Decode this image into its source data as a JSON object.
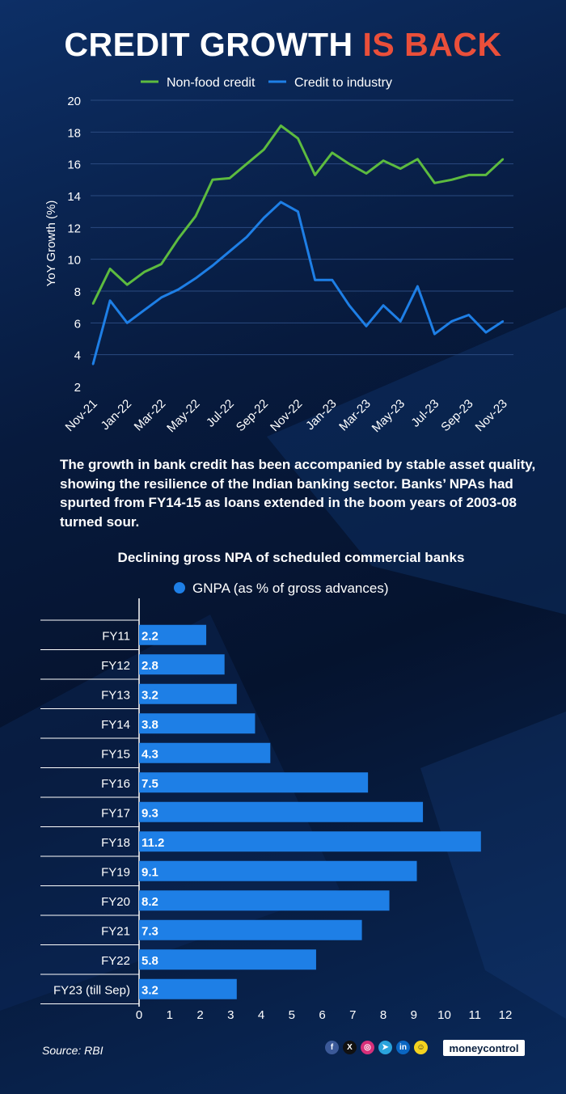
{
  "header": {
    "title_main": "CREDIT GROWTH ",
    "title_highlight": "IS BACK"
  },
  "colors": {
    "non_food": "#5dbb3f",
    "industry": "#1e7fe6",
    "bar": "#1e7fe6",
    "highlight": "#ea4f3a"
  },
  "chart_data": [
    {
      "type": "line",
      "ylabel": "YoY Growth (%)",
      "ylim": [
        2,
        20
      ],
      "yticks": [
        2,
        4,
        6,
        8,
        10,
        12,
        14,
        16,
        18,
        20
      ],
      "x": [
        "Nov-21",
        "Dec-21",
        "Jan-22",
        "Feb-22",
        "Mar-22",
        "Apr-22",
        "May-22",
        "Jun-22",
        "Jul-22",
        "Aug-22",
        "Sep-22",
        "Oct-22",
        "Nov-22",
        "Dec-22",
        "Jan-23",
        "Feb-23",
        "Mar-23",
        "Apr-23",
        "May-23",
        "Jun-23",
        "Jul-23",
        "Aug-23",
        "Sep-23",
        "Oct-23",
        "Nov-23"
      ],
      "xticklabels": [
        "Nov-21",
        "Jan-22",
        "Mar-22",
        "May-22",
        "Jul-22",
        "Sep-22",
        "Nov-22",
        "Jan-23",
        "Mar-23",
        "May-23",
        "Jul-23",
        "Sep-23",
        "Nov-23"
      ],
      "legend_position": "top",
      "grid": true,
      "series": [
        {
          "name": "Non-food credit",
          "color": "#5dbb3f",
          "values": [
            7.2,
            9.4,
            8.4,
            9.2,
            9.7,
            11.3,
            12.7,
            15.0,
            15.1,
            16.0,
            16.9,
            18.4,
            17.6,
            15.3,
            16.7,
            16.0,
            15.4,
            16.2,
            15.7,
            16.3,
            14.8,
            15.0,
            15.3,
            15.3,
            16.3
          ]
        },
        {
          "name": "Credit to industry",
          "color": "#1e7fe6",
          "values": [
            3.4,
            7.4,
            6.0,
            6.8,
            7.6,
            8.1,
            8.8,
            9.6,
            10.5,
            11.4,
            12.6,
            13.6,
            13.0,
            8.7,
            8.7,
            7.1,
            5.8,
            7.1,
            6.1,
            8.3,
            5.3,
            6.1,
            6.5,
            5.4,
            6.1
          ]
        }
      ]
    },
    {
      "type": "bar",
      "orientation": "horizontal",
      "title": "Declining gross NPA of scheduled commercial banks",
      "categories": [
        "FY11",
        "FY12",
        "FY13",
        "FY14",
        "FY15",
        "FY16",
        "FY17",
        "FY18",
        "FY19",
        "FY20",
        "FY21",
        "FY22",
        "FY23 (till Sep)"
      ],
      "series": [
        {
          "name": "GNPA (as % of gross advances)",
          "values": [
            2.2,
            2.8,
            3.2,
            3.8,
            4.3,
            7.5,
            9.3,
            11.2,
            9.1,
            8.2,
            7.3,
            5.8,
            3.2
          ]
        }
      ],
      "xlim": [
        0,
        12
      ],
      "xticks": [
        0,
        1,
        2,
        3,
        4,
        5,
        6,
        7,
        8,
        9,
        10,
        11,
        12
      ],
      "legend_position": "top"
    }
  ],
  "paragraph": "The growth in bank credit has been accompanied by stable asset quality, showing the resilience of the Indian banking sector. Banks’ NPAs had spurted from FY14-15 as loans extended in the boom years of 2003-08 turned sour.",
  "footer": {
    "source": "Source: RBI",
    "social_icons": [
      "facebook-icon",
      "x-icon",
      "instagram-icon",
      "telegram-icon",
      "linkedin-icon",
      "snapchat-icon"
    ],
    "brand": "moneycontrol"
  }
}
